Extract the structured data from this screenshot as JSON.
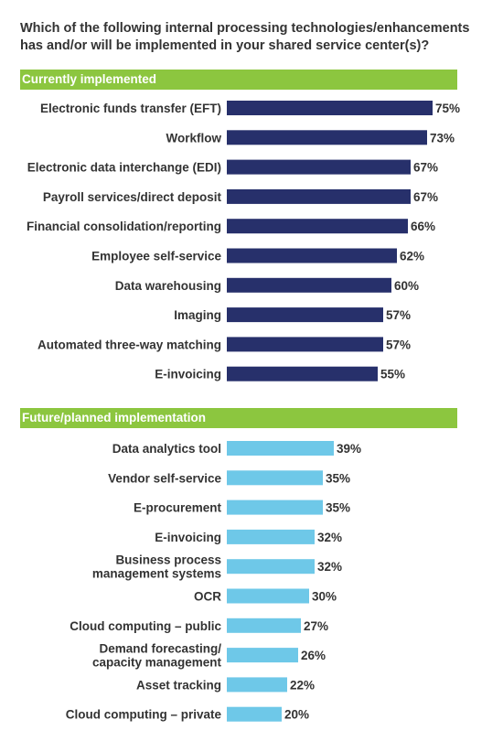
{
  "title_line1": "Which of the following internal processing technologies/enhancements",
  "title_line2": "has and/or will be implemented in your shared service center(s)?",
  "chart_data": [
    {
      "type": "bar",
      "orientation": "horizontal",
      "header": "Currently implemented",
      "color": "#27306b",
      "categories": [
        "Electronic funds transfer (EFT)",
        "Workflow",
        "Electronic data interchange (EDI)",
        "Payroll services/direct deposit",
        "Financial consolidation/reporting",
        "Employee self-service",
        "Data warehousing",
        "Imaging",
        "Automated three-way matching",
        "E-invoicing"
      ],
      "values": [
        75,
        73,
        67,
        67,
        66,
        62,
        60,
        57,
        57,
        55
      ],
      "value_labels": [
        "75%",
        "73%",
        "67%",
        "67%",
        "66%",
        "62%",
        "60%",
        "57%",
        "57%",
        "55%"
      ],
      "unit": "%"
    },
    {
      "type": "bar",
      "orientation": "horizontal",
      "header": "Future/planned implementation",
      "color": "#6ec8e8",
      "categories": [
        [
          "Data analytics tool"
        ],
        [
          "Vendor self-service"
        ],
        [
          "E-procurement"
        ],
        [
          "E-invoicing"
        ],
        [
          "Business process",
          "management systems"
        ],
        [
          "OCR"
        ],
        [
          "Cloud computing – public"
        ],
        [
          "Demand forecasting/",
          "capacity management"
        ],
        [
          "Asset tracking"
        ],
        [
          "Cloud computing – private"
        ]
      ],
      "values": [
        39,
        35,
        35,
        32,
        32,
        30,
        27,
        26,
        22,
        20
      ],
      "value_labels": [
        "39%",
        "35%",
        "35%",
        "32%",
        "32%",
        "30%",
        "27%",
        "26%",
        "22%",
        "20%"
      ],
      "unit": "%"
    }
  ]
}
